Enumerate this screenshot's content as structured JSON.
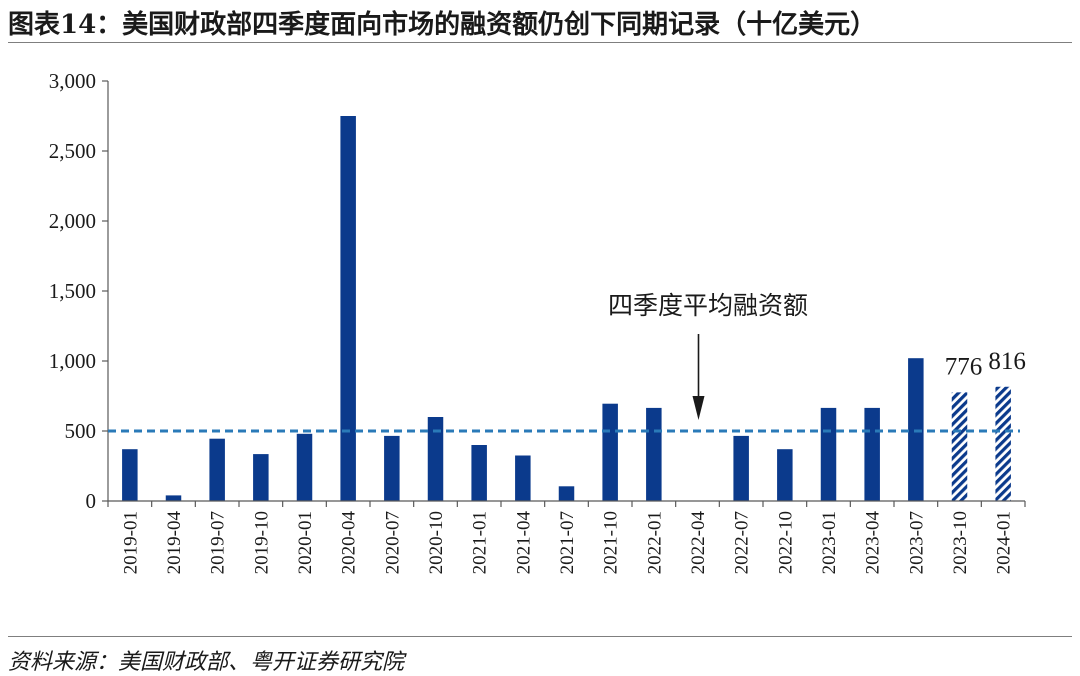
{
  "header": {
    "title": "图表14：美国财政部四季度面向市场的融资额仍创下同期记录（十亿美元）"
  },
  "footer": {
    "source": "资料来源：美国财政部、粤开证券研究院"
  },
  "chart_data": {
    "type": "bar",
    "categories": [
      "2019-01",
      "2019-04",
      "2019-07",
      "2019-10",
      "2020-01",
      "2020-04",
      "2020-07",
      "2020-10",
      "2021-01",
      "2021-04",
      "2021-07",
      "2021-10",
      "2022-01",
      "2022-04",
      "2022-07",
      "2022-10",
      "2023-01",
      "2023-04",
      "2023-07",
      "2023-10",
      "2024-01"
    ],
    "values": [
      370,
      40,
      445,
      335,
      480,
      2750,
      465,
      600,
      400,
      325,
      105,
      695,
      665,
      0,
      465,
      370,
      665,
      665,
      1020,
      776,
      816
    ],
    "hatched_categories": [
      "2023-10",
      "2024-01"
    ],
    "data_labels": {
      "2023-10": "776",
      "2024-01": "816"
    },
    "ylim": [
      0,
      3000
    ],
    "yticks": [
      "0",
      "500",
      "1,000",
      "1,500",
      "2,000",
      "2,500",
      "3,000"
    ],
    "ytick_values": [
      0,
      500,
      1000,
      1500,
      2000,
      2500,
      3000
    ],
    "reference_line": {
      "value": 500,
      "label": "四季度平均融资额",
      "style": "dashed"
    },
    "annotation_target": "2022-04",
    "grid": false,
    "legend": "none",
    "colors": {
      "bar": "#0b3a8c",
      "reference_line": "#2a7ab8",
      "axis": "#595959"
    }
  }
}
